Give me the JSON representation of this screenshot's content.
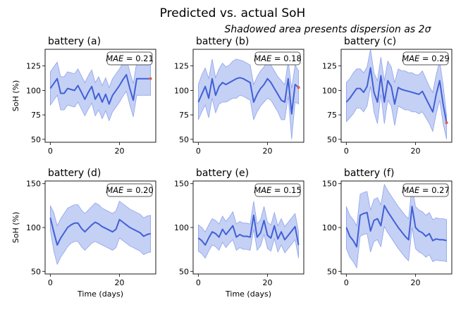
{
  "title": "Predicted vs. actual SoH",
  "subtitle": "Shadowed area presents dispersion as 2σ",
  "colors": {
    "mean": "#4060d6",
    "band": "#4a6ee0",
    "actual": "#e8603c"
  },
  "chart_data": [
    {
      "type": "line",
      "panel": "battery (a)",
      "title": "battery (a)",
      "mae": "0.21",
      "mae_prefix": "MAE",
      "mae_eq": " = ",
      "ylabel": "SoH (%)",
      "xlabel": "",
      "xlim": [
        -1.5,
        30.5
      ],
      "ylim": [
        47,
        142
      ],
      "xticks": [
        0,
        20
      ],
      "yticks": [
        50,
        75,
        100,
        125
      ],
      "x": [
        0,
        1,
        2,
        3,
        4,
        5,
        6,
        7,
        8,
        9,
        10,
        11,
        12,
        13,
        14,
        15,
        16,
        17,
        18,
        19,
        20,
        21,
        22,
        23,
        24,
        25,
        26,
        27,
        28,
        29
      ],
      "mean": [
        102,
        107,
        112,
        97,
        97,
        102,
        101,
        100,
        105,
        98,
        91,
        98,
        104,
        91,
        97,
        88,
        96,
        86,
        95,
        100,
        105,
        111,
        116,
        102,
        90,
        112,
        112,
        112,
        112,
        112
      ],
      "upper": [
        119,
        124,
        129,
        114,
        114,
        119,
        118,
        117,
        122,
        115,
        108,
        115,
        121,
        108,
        114,
        105,
        113,
        103,
        112,
        117,
        122,
        128,
        133,
        119,
        107,
        129,
        129,
        129,
        129,
        129
      ],
      "lower": [
        85,
        90,
        95,
        80,
        80,
        85,
        84,
        83,
        88,
        81,
        74,
        81,
        87,
        74,
        80,
        71,
        79,
        69,
        78,
        83,
        88,
        94,
        99,
        85,
        73,
        95,
        95,
        95,
        95,
        95
      ],
      "actual": [
        {
          "x": 29,
          "y": 112
        }
      ]
    },
    {
      "type": "line",
      "panel": "battery (b)",
      "title": "battery (b)",
      "mae": "0.18",
      "mae_prefix": "MAE",
      "mae_eq": " = ",
      "ylabel": "",
      "xlabel": "",
      "xlim": [
        -1.5,
        30.5
      ],
      "ylim": [
        47,
        142
      ],
      "xticks": [
        0,
        20
      ],
      "yticks": [
        50,
        75,
        100,
        125
      ],
      "x": [
        0,
        1,
        2,
        3,
        4,
        5,
        6,
        7,
        8,
        9,
        10,
        11,
        12,
        13,
        14,
        15,
        16,
        17,
        18,
        19,
        20,
        21,
        22,
        23,
        24,
        25,
        26,
        27,
        28,
        29
      ],
      "mean": [
        88,
        96,
        104,
        92,
        112,
        95,
        104,
        108,
        106,
        108,
        110,
        112,
        113,
        112,
        110,
        108,
        88,
        96,
        102,
        106,
        112,
        108,
        102,
        96,
        90,
        88,
        112,
        76,
        106,
        103
      ],
      "upper": [
        106,
        116,
        123,
        112,
        132,
        113,
        122,
        128,
        124,
        126,
        130,
        132,
        131,
        130,
        128,
        126,
        106,
        114,
        120,
        124,
        130,
        126,
        120,
        114,
        110,
        106,
        130,
        102,
        126,
        120
      ],
      "lower": [
        70,
        78,
        85,
        72,
        92,
        77,
        86,
        88,
        88,
        90,
        92,
        92,
        95,
        94,
        92,
        90,
        70,
        78,
        84,
        88,
        92,
        90,
        84,
        78,
        70,
        70,
        94,
        50,
        88,
        86
      ],
      "actual": [
        {
          "x": 29,
          "y": 103
        }
      ]
    },
    {
      "type": "line",
      "panel": "battery (c)",
      "title": "battery (c)",
      "mae": "0.29",
      "mae_prefix": "MAE",
      "mae_eq": " = ",
      "ylabel": "",
      "xlabel": "",
      "xlim": [
        -1.5,
        30.5
      ],
      "ylim": [
        47,
        142
      ],
      "xticks": [
        0,
        20
      ],
      "yticks": [
        50,
        75,
        100,
        125
      ],
      "x": [
        0,
        1,
        2,
        3,
        4,
        5,
        6,
        7,
        8,
        9,
        10,
        11,
        12,
        13,
        14,
        15,
        16,
        17,
        18,
        19,
        20,
        21,
        22,
        23,
        24,
        25,
        26,
        27,
        28,
        29
      ],
      "mean": [
        88,
        92,
        97,
        102,
        102,
        98,
        104,
        123,
        98,
        88,
        115,
        88,
        110,
        104,
        86,
        103,
        101,
        100,
        99,
        98,
        97,
        96,
        99,
        92,
        85,
        78,
        96,
        110,
        86,
        67
      ],
      "upper": [
        108,
        112,
        118,
        122,
        122,
        118,
        124,
        142,
        118,
        110,
        134,
        110,
        130,
        124,
        108,
        122,
        120,
        120,
        118,
        118,
        116,
        116,
        120,
        112,
        104,
        98,
        116,
        130,
        106,
        75
      ],
      "lower": [
        68,
        72,
        76,
        82,
        82,
        78,
        84,
        104,
        78,
        66,
        96,
        66,
        90,
        84,
        64,
        84,
        82,
        80,
        80,
        78,
        78,
        76,
        78,
        72,
        66,
        58,
        76,
        90,
        66,
        50
      ],
      "actual": [
        {
          "x": 29,
          "y": 67
        }
      ]
    },
    {
      "type": "line",
      "panel": "battery (d)",
      "title": "battery (d)",
      "mae": "0.20",
      "mae_prefix": "MAE",
      "mae_eq": " = ",
      "ylabel": "SoH (%)",
      "xlabel": "Time (days)",
      "xlim": [
        -1.5,
        30.5
      ],
      "ylim": [
        47,
        153
      ],
      "xticks": [
        0,
        20
      ],
      "yticks": [
        50,
        100,
        150
      ],
      "x": [
        0,
        1,
        2,
        3,
        4,
        5,
        6,
        7,
        8,
        9,
        10,
        11,
        12,
        13,
        14,
        15,
        16,
        17,
        18,
        19,
        20,
        21,
        22,
        23,
        24,
        25,
        26,
        27,
        28,
        29
      ],
      "mean": [
        111,
        95,
        80,
        88,
        94,
        100,
        103,
        105,
        105,
        99,
        95,
        99,
        103,
        106,
        104,
        101,
        99,
        97,
        95,
        98,
        109,
        106,
        103,
        100,
        98,
        96,
        94,
        90,
        92,
        93
      ],
      "upper": [
        125,
        117,
        102,
        110,
        116,
        122,
        124,
        126,
        126,
        120,
        116,
        120,
        124,
        128,
        126,
        122,
        120,
        118,
        116,
        119,
        130,
        127,
        124,
        121,
        119,
        117,
        115,
        111,
        113,
        114
      ],
      "lower": [
        97,
        73,
        58,
        66,
        72,
        78,
        82,
        84,
        84,
        78,
        74,
        78,
        82,
        84,
        82,
        80,
        78,
        76,
        74,
        77,
        88,
        85,
        82,
        79,
        77,
        75,
        73,
        69,
        71,
        72
      ]
    },
    {
      "type": "line",
      "panel": "battery (e)",
      "title": "battery (e)",
      "mae": "0.15",
      "mae_prefix": "MAE",
      "mae_eq": " = ",
      "ylabel": "",
      "xlabel": "Time (days)",
      "xlim": [
        -1.5,
        30.5
      ],
      "ylim": [
        47,
        153
      ],
      "xticks": [
        0,
        20
      ],
      "yticks": [
        50,
        100,
        150
      ],
      "x": [
        0,
        1,
        2,
        3,
        4,
        5,
        6,
        7,
        8,
        9,
        10,
        11,
        12,
        13,
        14,
        15,
        16,
        17,
        18,
        19,
        20,
        21,
        22,
        23,
        24,
        25,
        26,
        27,
        28,
        29
      ],
      "mean": [
        88,
        85,
        80,
        88,
        95,
        93,
        89,
        98,
        92,
        97,
        102,
        89,
        92,
        90,
        90,
        89,
        114,
        89,
        94,
        108,
        91,
        88,
        102,
        87,
        95,
        86,
        91,
        96,
        101,
        80
      ],
      "upper": [
        103,
        100,
        95,
        103,
        110,
        108,
        104,
        113,
        107,
        112,
        118,
        104,
        107,
        105,
        105,
        104,
        130,
        104,
        109,
        124,
        106,
        103,
        117,
        102,
        110,
        101,
        106,
        111,
        116,
        95
      ],
      "lower": [
        73,
        70,
        65,
        73,
        80,
        78,
        74,
        83,
        77,
        82,
        86,
        74,
        77,
        75,
        75,
        74,
        98,
        74,
        79,
        92,
        76,
        73,
        87,
        72,
        80,
        71,
        76,
        81,
        86,
        65
      ]
    },
    {
      "type": "line",
      "panel": "battery (f)",
      "title": "battery (f)",
      "mae": "0.27",
      "mae_prefix": "MAE",
      "mae_eq": " = ",
      "ylabel": "",
      "xlabel": "",
      "xlim": [
        -1.5,
        30.5
      ],
      "ylim": [
        47,
        153
      ],
      "xticks": [
        0,
        20
      ],
      "yticks": [
        50,
        100,
        150
      ],
      "x": [
        0,
        1,
        2,
        3,
        4,
        5,
        6,
        7,
        8,
        9,
        10,
        11,
        12,
        13,
        14,
        15,
        16,
        17,
        18,
        19,
        20,
        21,
        22,
        23,
        24,
        25,
        26,
        27,
        28,
        29
      ],
      "mean": [
        100,
        90,
        85,
        78,
        114,
        116,
        117,
        96,
        108,
        110,
        102,
        125,
        118,
        112,
        106,
        100,
        95,
        90,
        86,
        124,
        100,
        96,
        94,
        90,
        93,
        85,
        87,
        86,
        86,
        85
      ],
      "upper": [
        124,
        114,
        109,
        102,
        138,
        140,
        141,
        120,
        132,
        134,
        126,
        149,
        142,
        136,
        130,
        124,
        119,
        114,
        110,
        148,
        124,
        120,
        118,
        114,
        117,
        109,
        111,
        110,
        110,
        109
      ],
      "lower": [
        76,
        66,
        61,
        54,
        90,
        92,
        93,
        72,
        84,
        86,
        78,
        101,
        94,
        88,
        82,
        76,
        71,
        66,
        62,
        100,
        76,
        72,
        70,
        66,
        69,
        61,
        63,
        62,
        62,
        61
      ]
    }
  ]
}
